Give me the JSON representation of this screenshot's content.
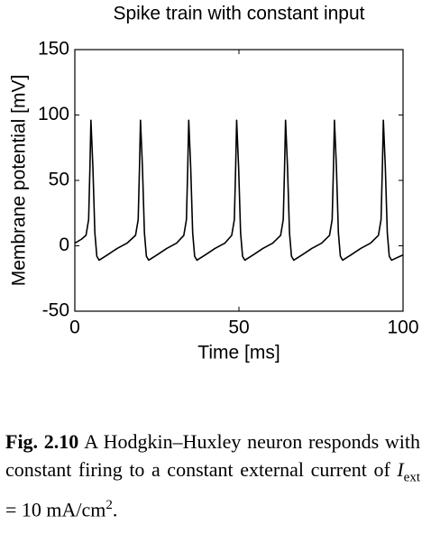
{
  "chart_data": {
    "type": "line",
    "title": "Spike train with constant input",
    "xlabel": "Time [ms]",
    "ylabel": "Membrane potential  [mV]",
    "xlim": [
      0,
      100
    ],
    "ylim": [
      -50,
      150
    ],
    "xticks": [
      0,
      50,
      100
    ],
    "yticks": [
      -50,
      0,
      50,
      100,
      150
    ],
    "color": "#000000",
    "x": [
      0,
      2,
      3.4,
      4.2,
      4.6,
      4.9,
      5.5,
      6.1,
      6.7,
      7.4,
      9.9,
      12.9,
      15.9,
      18.5,
      19.3,
      19.7,
      20.0,
      20.6,
      21.2,
      21.8,
      22.5,
      25.0,
      28.0,
      31.0,
      33.2,
      34.0,
      34.4,
      34.7,
      35.3,
      35.9,
      36.5,
      37.2,
      39.7,
      42.7,
      45.7,
      47.8,
      48.6,
      49.0,
      49.3,
      49.9,
      50.5,
      51.1,
      51.8,
      54.3,
      57.3,
      60.3,
      62.7,
      63.5,
      63.9,
      64.2,
      64.8,
      65.4,
      66.0,
      66.7,
      69.2,
      72.2,
      75.2,
      77.6,
      78.4,
      78.8,
      79.1,
      79.7,
      80.3,
      80.9,
      81.6,
      84.1,
      87.1,
      90.1,
      92.5,
      93.3,
      93.7,
      94.0,
      94.6,
      95.2,
      95.8,
      96.5,
      100
    ],
    "values": [
      2,
      5,
      8,
      20,
      60,
      96,
      60,
      10,
      -8,
      -11,
      -7,
      -2,
      2,
      8,
      20,
      60,
      96,
      60,
      10,
      -8,
      -11,
      -7,
      -2,
      2,
      8,
      20,
      60,
      96,
      60,
      10,
      -8,
      -11,
      -7,
      -2,
      2,
      8,
      20,
      60,
      96,
      60,
      10,
      -8,
      -11,
      -7,
      -2,
      2,
      8,
      20,
      60,
      96,
      60,
      10,
      -8,
      -11,
      -7,
      -2,
      2,
      8,
      20,
      60,
      96,
      60,
      10,
      -8,
      -11,
      -7,
      -2,
      2,
      8,
      20,
      60,
      96,
      60,
      10,
      -8,
      -11,
      -7
    ]
  },
  "caption": {
    "label": "Fig. 2.10",
    "text": "A Hodgkin–Huxley neuron responds with constant firing to a constant external current of",
    "symbol": "I",
    "subscript": "ext",
    "equation": "= 10 mA/cm",
    "superscript": "2",
    "end": "."
  }
}
